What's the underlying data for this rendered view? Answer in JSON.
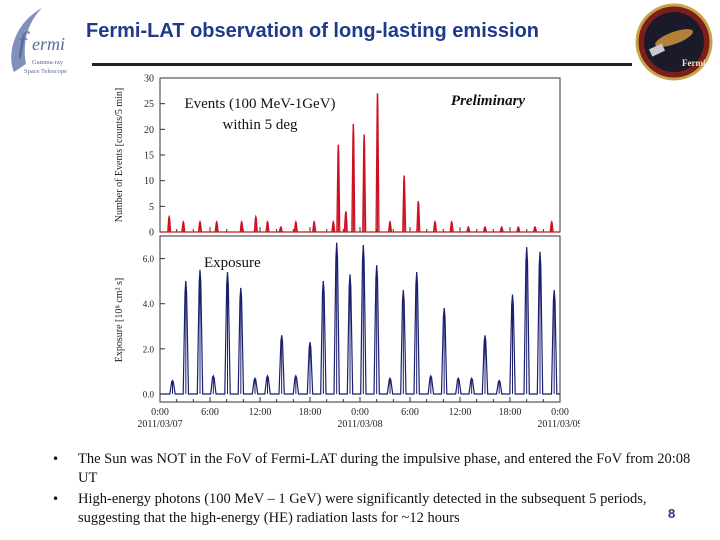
{
  "slide": {
    "title": "Fermi-LAT observation of long-lasting emission",
    "page_number": "8",
    "accent_color": "#1f3a8a"
  },
  "logo_left": {
    "lettering_main": "ermi",
    "lettering_sub": [
      "Gamma-ray",
      "Space Telescope"
    ]
  },
  "logo_right": {
    "lettering": "Fermi"
  },
  "bullets": [
    "The Sun was NOT in the FoV of Fermi-LAT during the impulsive phase, and entered the FoV from 20:08 UT",
    "High-energy photons (100 MeV – 1 GeV) were significantly detected in the subsequent 5 periods, suggesting that the high-energy (HE) radiation lasts for ~12 hours"
  ],
  "chart_data": [
    {
      "type": "line",
      "panel": "events",
      "color": "#cc1122",
      "ylabel": "Number of Events [counts/5 min]",
      "ylim": [
        0,
        30
      ],
      "yticks": [
        "0",
        "5",
        "10",
        "15",
        "20",
        "25",
        "30"
      ],
      "annotation": [
        "Events (100 MeV-1GeV)",
        "within 5 deg"
      ],
      "label_right": "Preliminary",
      "x_unit": "hours since 2011/03/07 00:00 UT",
      "xlim": [
        0,
        48
      ],
      "peaks": [
        {
          "x": 1.1,
          "y": 3
        },
        {
          "x": 2.8,
          "y": 2
        },
        {
          "x": 4.8,
          "y": 2
        },
        {
          "x": 6.8,
          "y": 2
        },
        {
          "x": 9.8,
          "y": 2
        },
        {
          "x": 11.5,
          "y": 3
        },
        {
          "x": 12.9,
          "y": 2
        },
        {
          "x": 14.5,
          "y": 1
        },
        {
          "x": 16.3,
          "y": 2
        },
        {
          "x": 18.5,
          "y": 2
        },
        {
          "x": 20.8,
          "y": 2
        },
        {
          "x": 21.4,
          "y": 17
        },
        {
          "x": 22.3,
          "y": 4
        },
        {
          "x": 23.2,
          "y": 21
        },
        {
          "x": 24.5,
          "y": 19
        },
        {
          "x": 26.1,
          "y": 27
        },
        {
          "x": 27.6,
          "y": 2
        },
        {
          "x": 29.3,
          "y": 11
        },
        {
          "x": 31.0,
          "y": 6
        },
        {
          "x": 33.0,
          "y": 2
        },
        {
          "x": 35.0,
          "y": 2
        },
        {
          "x": 37.0,
          "y": 1
        },
        {
          "x": 39.0,
          "y": 1
        },
        {
          "x": 41.0,
          "y": 1
        },
        {
          "x": 43.0,
          "y": 1
        },
        {
          "x": 45.0,
          "y": 1
        },
        {
          "x": 47.0,
          "y": 2
        }
      ]
    },
    {
      "type": "line",
      "panel": "exposure",
      "color": "#1a1f6e",
      "ylabel": "Exposure [10⁸ cm² s]",
      "ylim": [
        0,
        7
      ],
      "yticks": [
        "0.0",
        "2.0",
        "4.0",
        "6.0"
      ],
      "annotation": "Exposure",
      "x_unit": "hours since 2011/03/07 00:00 UT",
      "xlim": [
        0,
        48
      ],
      "xticks": [
        {
          "x": 0,
          "label": "0:00",
          "date": "2011/03/07"
        },
        {
          "x": 6,
          "label": "6:00"
        },
        {
          "x": 12,
          "label": "12:00"
        },
        {
          "x": 18,
          "label": "18:00"
        },
        {
          "x": 24,
          "label": "0:00",
          "date": "2011/03/08"
        },
        {
          "x": 30,
          "label": "6:00"
        },
        {
          "x": 36,
          "label": "12:00"
        },
        {
          "x": 42,
          "label": "18:00"
        },
        {
          "x": 48,
          "label": "0:00",
          "date": "2011/03/09"
        }
      ],
      "peaks": [
        {
          "x": 1.5,
          "y": 0.6
        },
        {
          "x": 3.1,
          "y": 5.0
        },
        {
          "x": 4.8,
          "y": 5.5
        },
        {
          "x": 6.4,
          "y": 0.8
        },
        {
          "x": 8.1,
          "y": 5.4
        },
        {
          "x": 9.7,
          "y": 4.7
        },
        {
          "x": 11.4,
          "y": 0.7
        },
        {
          "x": 12.9,
          "y": 0.8
        },
        {
          "x": 14.6,
          "y": 2.6
        },
        {
          "x": 16.3,
          "y": 0.8
        },
        {
          "x": 18.0,
          "y": 2.3
        },
        {
          "x": 19.6,
          "y": 5.0
        },
        {
          "x": 21.2,
          "y": 6.7
        },
        {
          "x": 22.8,
          "y": 5.3
        },
        {
          "x": 24.4,
          "y": 6.6
        },
        {
          "x": 26.0,
          "y": 5.7
        },
        {
          "x": 27.6,
          "y": 0.7
        },
        {
          "x": 29.2,
          "y": 4.6
        },
        {
          "x": 30.8,
          "y": 5.4
        },
        {
          "x": 32.5,
          "y": 0.8
        },
        {
          "x": 34.1,
          "y": 3.8
        },
        {
          "x": 35.8,
          "y": 0.7
        },
        {
          "x": 37.4,
          "y": 0.7
        },
        {
          "x": 39.0,
          "y": 2.6
        },
        {
          "x": 40.7,
          "y": 0.6
        },
        {
          "x": 42.3,
          "y": 4.4
        },
        {
          "x": 44.0,
          "y": 6.5
        },
        {
          "x": 45.6,
          "y": 6.3
        },
        {
          "x": 47.3,
          "y": 4.6
        }
      ]
    }
  ]
}
